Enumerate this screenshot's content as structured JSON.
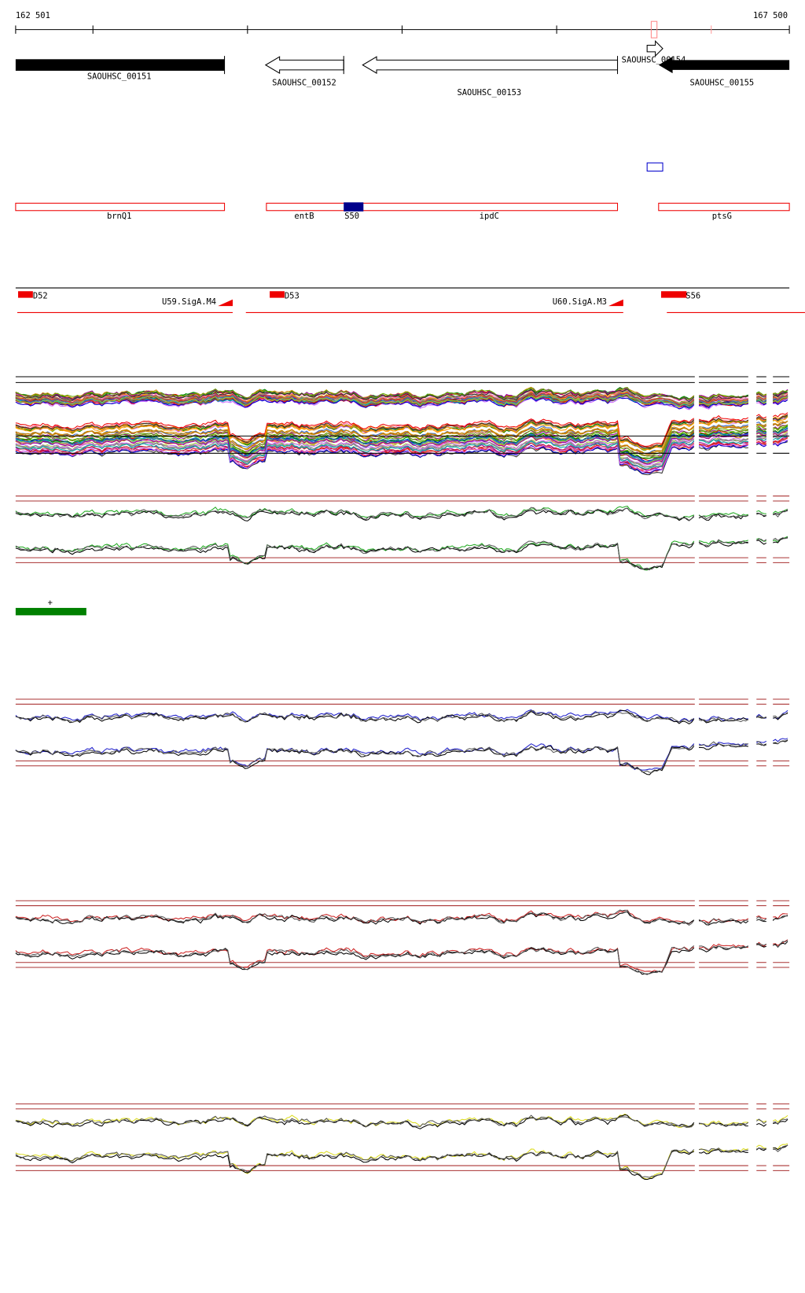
{
  "ruler": {
    "start": "162 501",
    "end": "167 500"
  },
  "genes": [
    "SAOUHSC_00151",
    "SAOUHSC_00152",
    "SAOUHSC_00153",
    "SAOUHSC_00154",
    "SAOUHSC_00155"
  ],
  "features": [
    "brnQ1",
    "entB",
    "S50",
    "ipdC",
    "ptsG"
  ],
  "regulators": [
    "D52",
    "U59.SigA.M4",
    "D53",
    "U60.SigA.M3",
    "S56"
  ],
  "strand": "+"
}
